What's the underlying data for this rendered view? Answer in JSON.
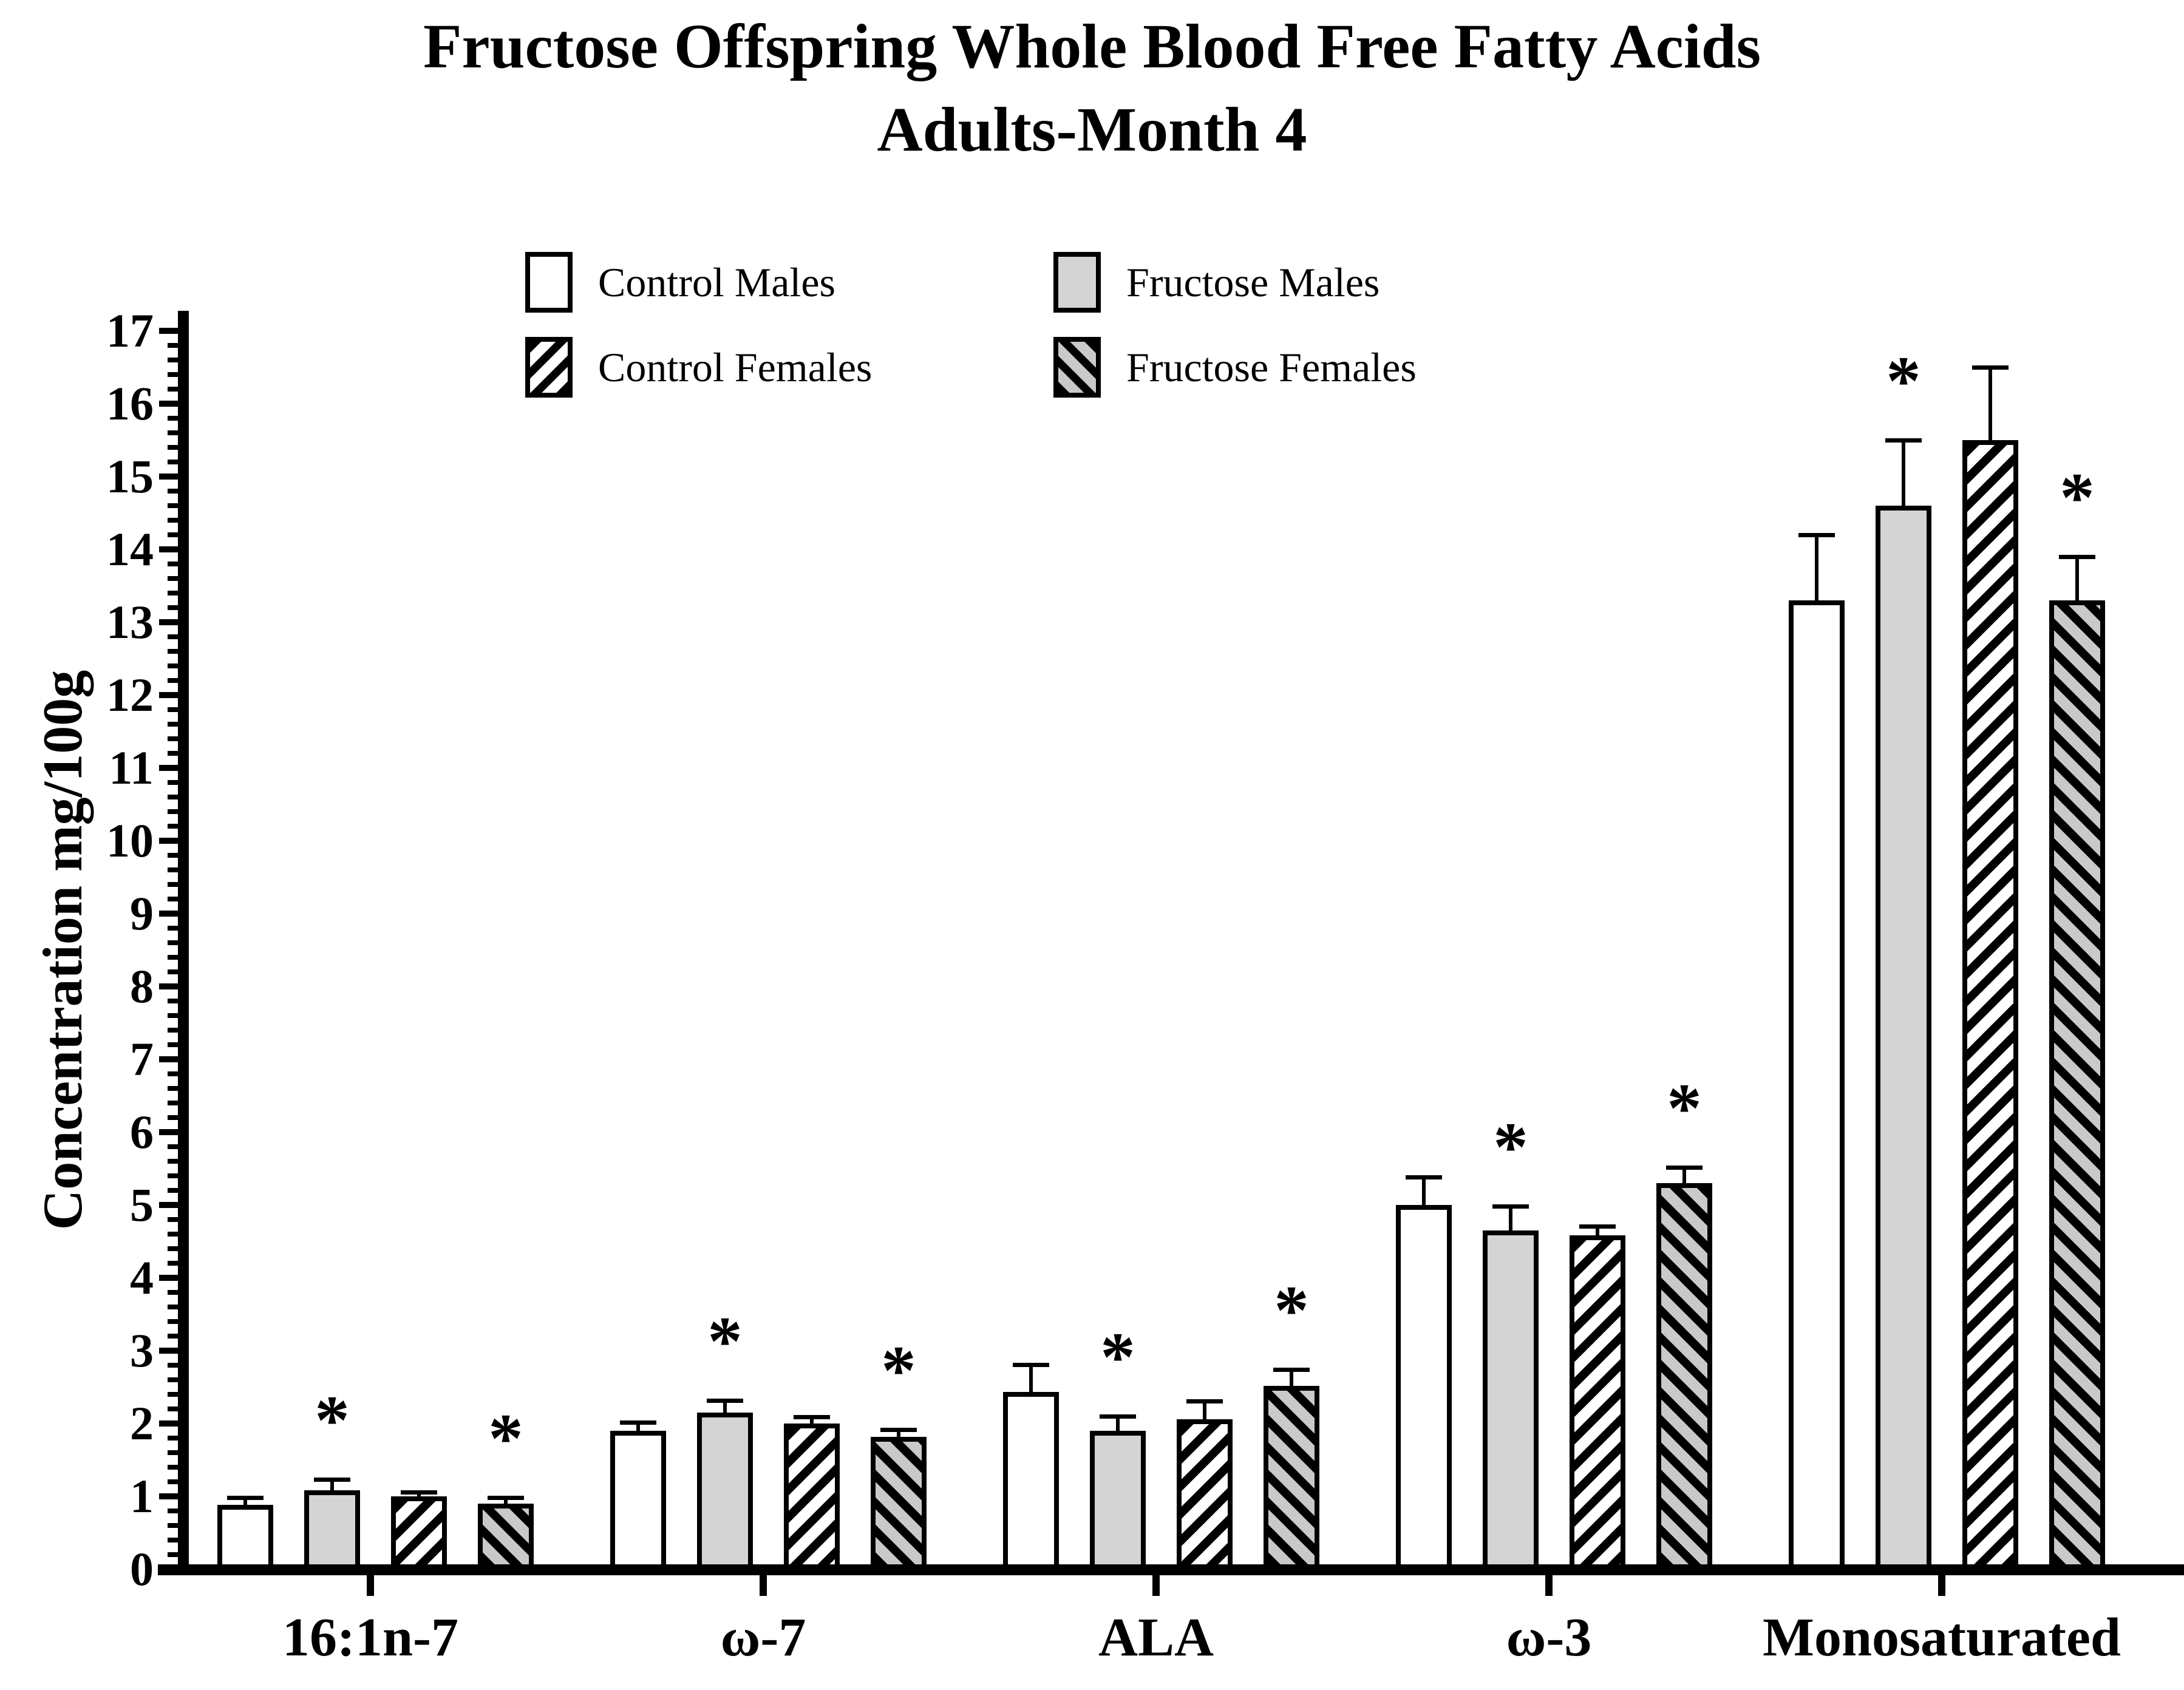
{
  "title": {
    "line1": "Fructose Offspring Whole Blood Free Fatty Acids",
    "line2": "Adults-Month 4"
  },
  "chart_data": {
    "type": "bar",
    "title": "Fructose Offspring Whole Blood Free Fatty Acids Adults-Month 4",
    "xlabel": "",
    "ylabel": "Concentration mg/100g",
    "ylim": [
      0,
      17
    ],
    "ytick_step": 1,
    "grid": "off",
    "legend_position": "top",
    "error_bars": "upper-only",
    "significance_marker": "*",
    "categories": [
      "16:1n-7",
      "ω-7",
      "ALA",
      "ω-3",
      "Monosaturated"
    ],
    "series": [
      {
        "name": "Control Males",
        "pattern": "solid-white",
        "values": [
          0.88,
          1.9,
          2.43,
          5.0,
          13.3
        ],
        "errors": [
          0.1,
          0.12,
          0.38,
          0.38,
          0.9
        ],
        "significant": [
          false,
          false,
          false,
          false,
          false
        ]
      },
      {
        "name": "Fructose Males",
        "pattern": "solid-gray",
        "values": [
          1.08,
          2.15,
          1.9,
          4.65,
          14.6
        ],
        "errors": [
          0.15,
          0.17,
          0.2,
          0.33,
          0.9
        ],
        "significant": [
          true,
          true,
          true,
          true,
          true
        ]
      },
      {
        "name": "Control Females",
        "pattern": "hatch-forward-white",
        "values": [
          1.0,
          2.0,
          2.06,
          4.58,
          15.5
        ],
        "errors": [
          0.06,
          0.09,
          0.25,
          0.13,
          1.0
        ],
        "significant": [
          false,
          false,
          false,
          false,
          false
        ]
      },
      {
        "name": "Fructose Females",
        "pattern": "hatch-back-gray",
        "values": [
          0.9,
          1.82,
          2.52,
          5.3,
          13.3
        ],
        "errors": [
          0.08,
          0.1,
          0.22,
          0.22,
          0.6
        ],
        "significant": [
          true,
          true,
          true,
          true,
          true
        ]
      }
    ],
    "colors": {
      "ink": "#000000",
      "background": "#ffffff",
      "solid_gray": "#d4d4d4",
      "hatch_gray": "#c9c9c9"
    }
  }
}
